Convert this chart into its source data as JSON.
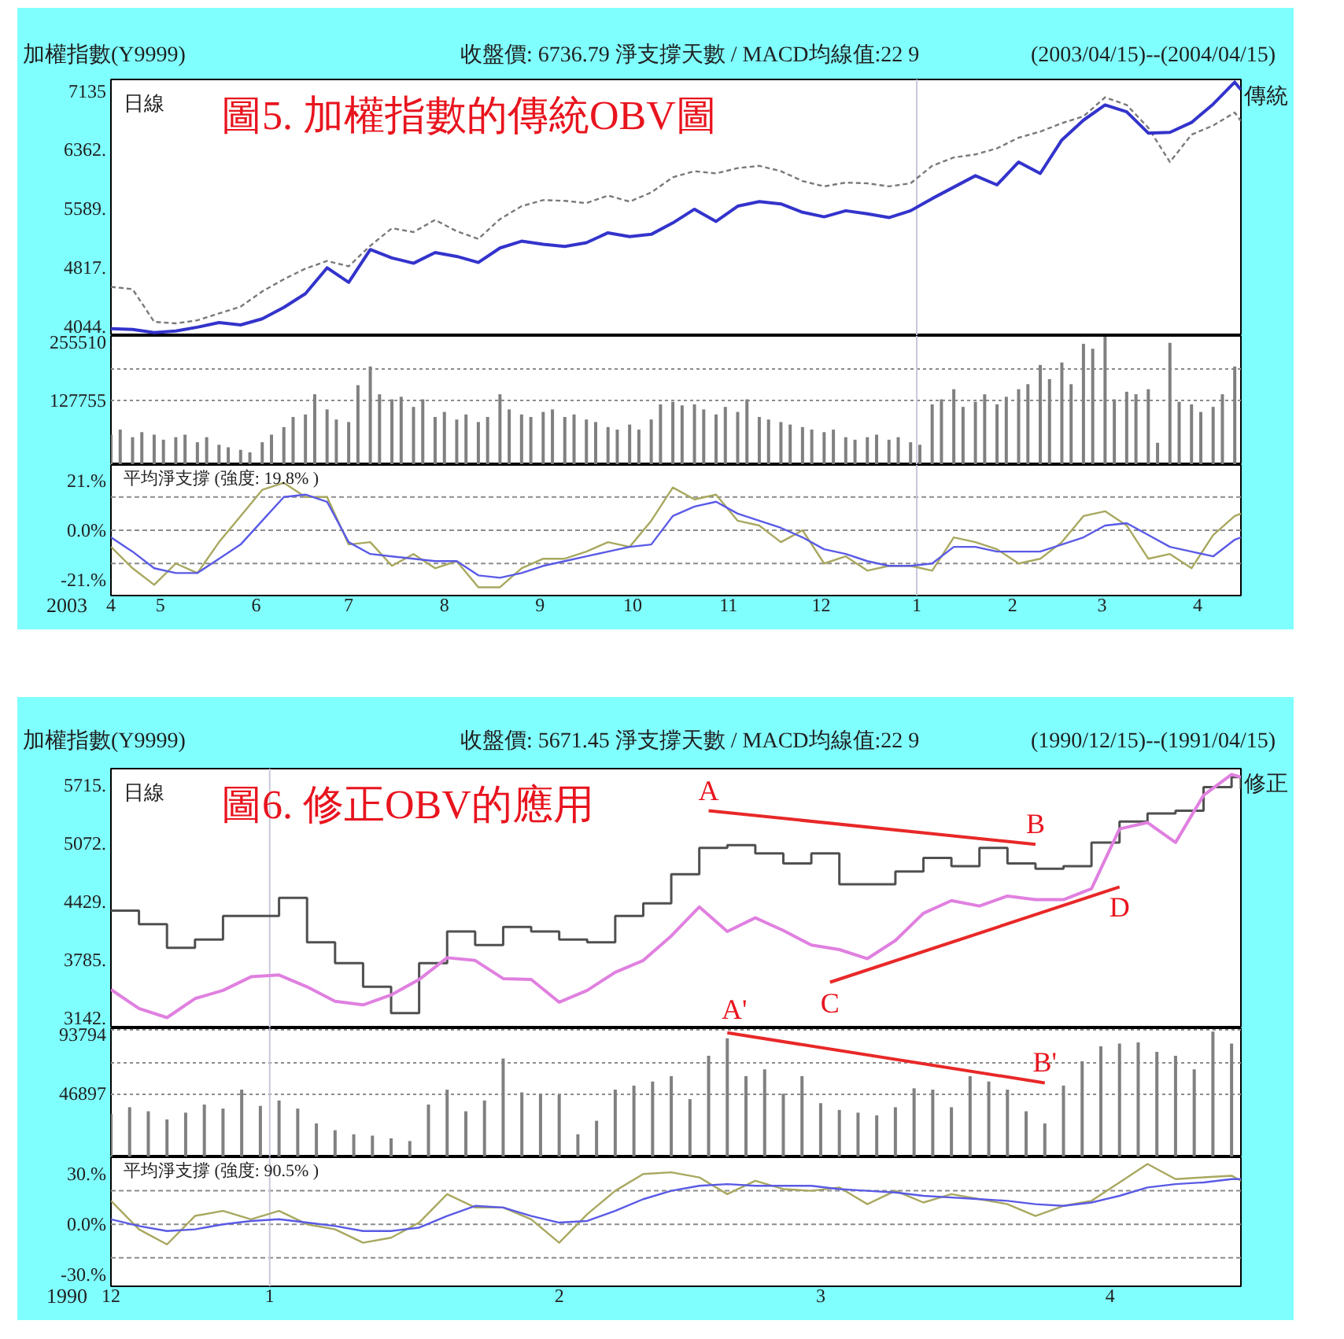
{
  "chart_data": [
    {
      "type": "line",
      "title": "加權指數(Y9999)",
      "subtitle": "收盤價: 6736.79 淨支撐天數 / MACD均線值:22 9",
      "annotations": [
        "(2003/04/15)--(2004/04/15)",
        "圖5. 加權指數的傳統OBV圖",
        "日線"
      ],
      "x": [
        "2003-04-15",
        "2003-04-22",
        "2003-04-29",
        "2003-05-06",
        "2003-05-13",
        "2003-05-20",
        "2003-05-27",
        "2003-06-03",
        "2003-06-10",
        "2003-06-17",
        "2003-06-24",
        "2003-07-01",
        "2003-07-08",
        "2003-07-15",
        "2003-07-22",
        "2003-07-29",
        "2003-08-05",
        "2003-08-12",
        "2003-08-19",
        "2003-08-26",
        "2003-09-02",
        "2003-09-09",
        "2003-09-16",
        "2003-09-23",
        "2003-09-30",
        "2003-10-07",
        "2003-10-14",
        "2003-10-21",
        "2003-10-28",
        "2003-11-04",
        "2003-11-11",
        "2003-11-18",
        "2003-11-25",
        "2003-12-02",
        "2003-12-09",
        "2003-12-16",
        "2003-12-23",
        "2003-12-30",
        "2004-01-06",
        "2004-01-13",
        "2004-01-20",
        "2004-01-27",
        "2004-02-03",
        "2004-02-10",
        "2004-02-17",
        "2004-02-24",
        "2004-03-02",
        "2004-03-09",
        "2004-03-16",
        "2004-03-23",
        "2004-03-30",
        "2004-04-06",
        "2004-04-13",
        "2004-04-15"
      ],
      "xlim": [
        "2003-04-15",
        "2004-04-15"
      ],
      "ylim": [
        3915,
        7285
      ],
      "yticks": [
        7135,
        {
          "value": 6362,
          "label": "6362."
        },
        {
          "value": 5589,
          "label": "5589."
        },
        {
          "value": 4817,
          "label": "4817."
        },
        {
          "value": 4044,
          "label": "4044."
        }
      ],
      "tick_labels": "y",
      "ref_lines": [
        {
          "axis": "x",
          "value": "2004-01-01",
          "color": "#c8c8dc"
        }
      ],
      "series": [
        {
          "color": "#7a7a7a",
          "line_style": "dashed",
          "values": [
            4560,
            4530,
            4100,
            4080,
            4120,
            4210,
            4300,
            4500,
            4660,
            4800,
            4900,
            4830,
            5100,
            5330,
            5280,
            5440,
            5290,
            5190,
            5450,
            5620,
            5700,
            5690,
            5660,
            5760,
            5680,
            5800,
            6000,
            6080,
            6050,
            6120,
            6150,
            6080,
            5950,
            5880,
            5930,
            5920,
            5880,
            5920,
            6150,
            6260,
            6300,
            6380,
            6520,
            6600,
            6710,
            6800,
            7050,
            6950,
            6650,
            6200,
            6560,
            6680,
            6850,
            6740
          ]
        },
        {
          "name": "傳統",
          "color": "#3333cc",
          "values": [
            4010,
            4000,
            3960,
            3980,
            4030,
            4090,
            4060,
            4140,
            4290,
            4470,
            4810,
            4620,
            5050,
            4940,
            4870,
            5010,
            4960,
            4880,
            5070,
            5160,
            5120,
            5090,
            5140,
            5270,
            5220,
            5250,
            5400,
            5580,
            5420,
            5620,
            5680,
            5650,
            5540,
            5480,
            5560,
            5520,
            5470,
            5560,
            5720,
            5870,
            6020,
            5900,
            6200,
            6050,
            6490,
            6750,
            6950,
            6860,
            6580,
            6590,
            6720,
            6960,
            7250,
            7150
          ]
        }
      ]
    },
    {
      "type": "bar",
      "x": [
        "2003-04-15",
        "2003-04-18",
        "2003-04-22",
        "2003-04-25",
        "2003-04-29",
        "2003-05-02",
        "2003-05-06",
        "2003-05-09",
        "2003-05-13",
        "2003-05-16",
        "2003-05-20",
        "2003-05-23",
        "2003-05-27",
        "2003-05-30",
        "2003-06-03",
        "2003-06-06",
        "2003-06-10",
        "2003-06-13",
        "2003-06-17",
        "2003-06-20",
        "2003-06-24",
        "2003-06-27",
        "2003-07-01",
        "2003-07-04",
        "2003-07-08",
        "2003-07-11",
        "2003-07-15",
        "2003-07-18",
        "2003-07-22",
        "2003-07-25",
        "2003-07-29",
        "2003-08-01",
        "2003-08-05",
        "2003-08-08",
        "2003-08-12",
        "2003-08-15",
        "2003-08-19",
        "2003-08-22",
        "2003-08-26",
        "2003-08-29",
        "2003-09-02",
        "2003-09-05",
        "2003-09-09",
        "2003-09-12",
        "2003-09-16",
        "2003-09-19",
        "2003-09-23",
        "2003-09-26",
        "2003-09-30",
        "2003-10-03",
        "2003-10-07",
        "2003-10-10",
        "2003-10-14",
        "2003-10-17",
        "2003-10-21",
        "2003-10-24",
        "2003-10-28",
        "2003-10-31",
        "2003-11-04",
        "2003-11-07",
        "2003-11-11",
        "2003-11-14",
        "2003-11-18",
        "2003-11-21",
        "2003-11-25",
        "2003-11-28",
        "2003-12-02",
        "2003-12-05",
        "2003-12-09",
        "2003-12-12",
        "2003-12-16",
        "2003-12-19",
        "2003-12-23",
        "2003-12-26",
        "2003-12-30",
        "2004-01-02",
        "2004-01-06",
        "2004-01-09",
        "2004-01-13",
        "2004-01-16",
        "2004-01-20",
        "2004-01-23",
        "2004-01-27",
        "2004-01-30",
        "2004-02-03",
        "2004-02-06",
        "2004-02-10",
        "2004-02-13",
        "2004-02-17",
        "2004-02-20",
        "2004-02-24",
        "2004-02-27",
        "2004-03-02",
        "2004-03-05",
        "2004-03-09",
        "2004-03-12",
        "2004-03-16",
        "2004-03-19",
        "2004-03-23",
        "2004-03-26",
        "2004-03-30",
        "2004-04-02",
        "2004-04-06",
        "2004-04-09",
        "2004-04-13"
      ],
      "xlim": [
        "2003-04-15",
        "2004-04-15"
      ],
      "ylim": [
        0,
        255510
      ],
      "yticks": [
        255510,
        {
          "value": 191632.5,
          "label": null
        },
        127755
      ],
      "grid": "y",
      "tick_labels": "y",
      "ref_lines": [
        {
          "axis": "x",
          "value": "2004-01-01",
          "color": "#c8c8dc"
        }
      ],
      "series": [
        {
          "color": "#808080",
          "values": [
            60000,
            70000,
            55000,
            65000,
            60000,
            50000,
            55000,
            60000,
            45000,
            55000,
            40000,
            35000,
            30000,
            25000,
            45000,
            60000,
            75000,
            95000,
            100000,
            140000,
            110000,
            90000,
            85000,
            158000,
            195000,
            140000,
            130000,
            135000,
            115000,
            130000,
            95000,
            105000,
            90000,
            100000,
            85000,
            95000,
            140000,
            110000,
            100000,
            95000,
            105000,
            110000,
            95000,
            100000,
            90000,
            85000,
            75000,
            70000,
            80000,
            70000,
            90000,
            120000,
            125000,
            118000,
            120000,
            110000,
            100000,
            115000,
            105000,
            130000,
            95000,
            90000,
            85000,
            80000,
            75000,
            70000,
            65000,
            70000,
            55000,
            50000,
            55000,
            60000,
            50000,
            55000,
            45000,
            40000,
            120000,
            130000,
            150000,
            115000,
            125000,
            140000,
            120000,
            135000,
            150000,
            160000,
            198000,
            170000,
            203000,
            160000,
            240000,
            230000,
            254000,
            130000,
            145000,
            140000,
            150000,
            44000,
            242000,
            125000,
            120000,
            105000,
            115000,
            140000,
            195000
          ]
        }
      ]
    },
    {
      "type": "line",
      "title": "平均淨支撐 (強度: 19.8% )",
      "x": [
        "2003-04-15",
        "2003-04-22",
        "2003-04-29",
        "2003-05-06",
        "2003-05-13",
        "2003-05-20",
        "2003-05-27",
        "2003-06-03",
        "2003-06-10",
        "2003-06-17",
        "2003-06-24",
        "2003-07-01",
        "2003-07-08",
        "2003-07-15",
        "2003-07-22",
        "2003-07-29",
        "2003-08-05",
        "2003-08-12",
        "2003-08-19",
        "2003-08-26",
        "2003-09-02",
        "2003-09-09",
        "2003-09-16",
        "2003-09-23",
        "2003-09-30",
        "2003-10-07",
        "2003-10-14",
        "2003-10-21",
        "2003-10-28",
        "2003-11-04",
        "2003-11-11",
        "2003-11-18",
        "2003-11-25",
        "2003-12-02",
        "2003-12-09",
        "2003-12-16",
        "2003-12-23",
        "2003-12-30",
        "2004-01-06",
        "2004-01-13",
        "2004-01-20",
        "2004-01-27",
        "2004-02-03",
        "2004-02-10",
        "2004-02-17",
        "2004-02-24",
        "2004-03-02",
        "2004-03-09",
        "2004-03-16",
        "2004-03-23",
        "2004-03-30",
        "2004-04-06",
        "2004-04-13",
        "2004-04-15"
      ],
      "xlim": [
        "2003-04-15",
        "2004-04-15"
      ],
      "ylim": [
        -27.5,
        27.5
      ],
      "yticks": [
        {
          "value": 21,
          "label": "21.%"
        },
        {
          "value": 0,
          "label": "0.0%"
        },
        {
          "value": -21,
          "label": "-21.%"
        }
      ],
      "xticks": [
        {
          "value": "2003-04-15",
          "label": "4"
        },
        {
          "value": "2003-05-01",
          "label": "5"
        },
        {
          "value": "2003-06-01",
          "label": "6"
        },
        {
          "value": "2003-07-01",
          "label": "7"
        },
        {
          "value": "2003-08-01",
          "label": "8"
        },
        {
          "value": "2003-09-01",
          "label": "9"
        },
        {
          "value": "2003-10-01",
          "label": "10"
        },
        {
          "value": "2003-11-01",
          "label": "11"
        },
        {
          "value": "2003-12-01",
          "label": "12"
        },
        {
          "value": "2004-01-01",
          "label": "1"
        },
        {
          "value": "2004-02-01",
          "label": "2"
        },
        {
          "value": "2004-03-01",
          "label": "3"
        },
        {
          "value": "2004-04-01",
          "label": "4"
        }
      ],
      "xlabel": "2003",
      "ref_lines": [
        {
          "axis": "y",
          "value": 14,
          "line_style": "dashed",
          "color": "#8c8c8c"
        },
        {
          "axis": "y",
          "value": 0,
          "line_style": "dashed",
          "color": "#8c8c8c"
        },
        {
          "axis": "y",
          "value": -14,
          "line_style": "dashed",
          "color": "#8c8c8c"
        },
        {
          "axis": "x",
          "value": "2004-01-01",
          "color": "#c8c8dc"
        }
      ],
      "series": [
        {
          "color": "#a8a860",
          "values": [
            -7,
            -16,
            -23,
            -14,
            -18,
            -5,
            6,
            17,
            20,
            14,
            14,
            -6,
            -5,
            -15,
            -10,
            -16,
            -13,
            -24,
            -24,
            -16,
            -12,
            -12,
            -9,
            -5,
            -7,
            4,
            18,
            13,
            15,
            4,
            2,
            -5,
            0,
            -14,
            -11,
            -17,
            -15,
            -15,
            -17,
            -3,
            -5,
            -8,
            -14,
            -12,
            -5,
            6,
            8,
            2,
            -12,
            -10,
            -16,
            -2,
            6,
            7
          ]
        },
        {
          "color": "#5a5ae6",
          "values": [
            -3,
            -9,
            -16,
            -18,
            -18,
            -12,
            -6,
            4,
            14,
            15,
            12,
            -5,
            -10,
            -11,
            -12,
            -13,
            -13,
            -19,
            -20,
            -18,
            -15,
            -13,
            -11,
            -9,
            -7,
            -6,
            6,
            10,
            12,
            7,
            4,
            1,
            -3,
            -8,
            -10,
            -13,
            -15,
            -15,
            -14,
            -7,
            -7,
            -9,
            -9,
            -9,
            -6,
            -3,
            2,
            3,
            -2,
            -7,
            -9,
            -11,
            -4,
            -3
          ]
        }
      ]
    },
    {
      "type": "line",
      "title": "加權指數(Y9999)",
      "subtitle": "收盤價: 5671.45 淨支撐天數 / MACD均線值:22 9",
      "annotations": [
        "(1990/12/15)--(1991/04/15)",
        "圖6. 修正OBV的應用",
        "日線",
        "A'",
        {
          "text": "A",
          "x": "1991-02-17",
          "y": 5430
        },
        {
          "text": "B",
          "x": "1991-03-24",
          "y": 5060
        },
        {
          "text": "C",
          "x": "1991-03-02",
          "y": 3540
        },
        {
          "text": "D",
          "x": "1991-04-02",
          "y": 4590
        }
      ],
      "x": [
        "1990-12-15",
        "1990-12-18",
        "1990-12-21",
        "1990-12-24",
        "1990-12-27",
        "1990-12-30",
        "1991-01-02",
        "1991-01-05",
        "1991-01-08",
        "1991-01-11",
        "1991-01-14",
        "1991-01-17",
        "1991-01-20",
        "1991-01-23",
        "1991-01-26",
        "1991-01-29",
        "1991-02-01",
        "1991-02-04",
        "1991-02-07",
        "1991-02-10",
        "1991-02-13",
        "1991-02-16",
        "1991-02-19",
        "1991-02-22",
        "1991-02-25",
        "1991-02-28",
        "1991-03-03",
        "1991-03-06",
        "1991-03-09",
        "1991-03-12",
        "1991-03-15",
        "1991-03-18",
        "1991-03-21",
        "1991-03-24",
        "1991-03-27",
        "1991-03-30",
        "1991-04-02",
        "1991-04-05",
        "1991-04-08",
        "1991-04-11",
        "1991-04-14",
        "1991-04-15"
      ],
      "xlim": [
        "1990-12-15",
        "1991-04-15"
      ],
      "ylim": [
        3033,
        5894
      ],
      "yticks": [
        {
          "value": 5715,
          "label": "5715."
        },
        {
          "value": 5072,
          "label": "5072."
        },
        {
          "value": 4429,
          "label": "4429."
        },
        {
          "value": 3785,
          "label": "3785."
        },
        {
          "value": 3142,
          "label": "3142."
        }
      ],
      "tick_labels": "y",
      "ref_lines": [
        {
          "axis": "x",
          "value": "1991-01-01",
          "color": "#c8c8dc"
        }
      ],
      "series": [
        {
          "type": "step",
          "color": "#505050",
          "values": [
            4330,
            4180,
            3920,
            4010,
            4270,
            4270,
            4470,
            3980,
            3750,
            3490,
            3200,
            3750,
            4100,
            3950,
            4150,
            4100,
            4010,
            3980,
            4270,
            4410,
            4730,
            5020,
            5050,
            4960,
            4850,
            4960,
            4620,
            4620,
            4760,
            4910,
            4820,
            5020,
            4850,
            4790,
            4820,
            5080,
            5310,
            5400,
            5430,
            5690,
            5800,
            5670
          ]
        },
        {
          "name": "修正",
          "color": "#e080e0",
          "values": [
            3460,
            3250,
            3150,
            3360,
            3450,
            3600,
            3620,
            3490,
            3330,
            3290,
            3400,
            3570,
            3810,
            3780,
            3580,
            3570,
            3320,
            3450,
            3650,
            3780,
            4050,
            4370,
            4100,
            4250,
            4110,
            3950,
            3900,
            3800,
            4000,
            4300,
            4440,
            4380,
            4490,
            4450,
            4450,
            4570,
            5230,
            5300,
            5080,
            5600,
            5830,
            5800
          ]
        },
        {
          "color": "#e82828",
          "x": [
            "1991-02-17",
            "1991-03-24"
          ],
          "values": [
            5430,
            5060
          ]
        },
        {
          "color": "#e82828",
          "x": [
            "1991-03-02",
            "1991-04-02"
          ],
          "values": [
            3540,
            4590
          ]
        }
      ]
    },
    {
      "type": "bar",
      "annotations": [
        {
          "text": "B'",
          "x": "1991-03-25",
          "y": 55000
        }
      ],
      "x": [
        "1990-12-15",
        "1990-12-17",
        "1990-12-19",
        "1990-12-21",
        "1990-12-23",
        "1990-12-25",
        "1990-12-27",
        "1990-12-29",
        "1990-12-31",
        "1991-01-02",
        "1991-01-04",
        "1991-01-06",
        "1991-01-08",
        "1991-01-10",
        "1991-01-12",
        "1991-01-14",
        "1991-01-16",
        "1991-01-18",
        "1991-01-20",
        "1991-01-22",
        "1991-01-24",
        "1991-01-26",
        "1991-01-28",
        "1991-01-30",
        "1991-02-01",
        "1991-02-03",
        "1991-02-05",
        "1991-02-07",
        "1991-02-09",
        "1991-02-11",
        "1991-02-13",
        "1991-02-15",
        "1991-02-17",
        "1991-02-19",
        "1991-02-21",
        "1991-02-23",
        "1991-02-25",
        "1991-02-27",
        "1991-03-01",
        "1991-03-03",
        "1991-03-05",
        "1991-03-07",
        "1991-03-09",
        "1991-03-11",
        "1991-03-13",
        "1991-03-15",
        "1991-03-17",
        "1991-03-19",
        "1991-03-21",
        "1991-03-23",
        "1991-03-25",
        "1991-03-27",
        "1991-03-29",
        "1991-03-31",
        "1991-04-02",
        "1991-04-04",
        "1991-04-06",
        "1991-04-08",
        "1991-04-10",
        "1991-04-12",
        "1991-04-14"
      ],
      "xlim": [
        "1990-12-15",
        "1991-04-15"
      ],
      "ylim": [
        0,
        95400
      ],
      "yticks": [
        93794,
        {
          "value": 70345.5,
          "label": null
        },
        46897
      ],
      "grid": "y",
      "tick_labels": "y",
      "ref_lines": [
        {
          "axis": "x",
          "value": "1991-01-01",
          "color": "#c8c8dc"
        }
      ],
      "series": [
        {
          "color": "#808080",
          "values": [
            32000,
            37000,
            34000,
            28000,
            33000,
            39000,
            36000,
            50000,
            38000,
            42000,
            36000,
            25000,
            20000,
            17000,
            16000,
            14000,
            12000,
            39000,
            50000,
            34000,
            42000,
            73000,
            48000,
            47000,
            46000,
            17000,
            27000,
            50000,
            53000,
            56000,
            60000,
            43000,
            75000,
            88000,
            60000,
            65000,
            47000,
            60000,
            40000,
            35000,
            33000,
            31000,
            37000,
            51000,
            50000,
            37000,
            60000,
            56000,
            50000,
            34000,
            25000,
            53000,
            71000,
            82000,
            84000,
            85000,
            78000,
            75000,
            65000,
            93000,
            84000
          ]
        },
        {
          "type": "line",
          "color": "#e82828",
          "x": [
            "1991-02-19",
            "1991-03-25"
          ],
          "values": [
            92000,
            55000
          ]
        }
      ]
    },
    {
      "type": "line",
      "title": "平均淨支撐 (強度: 90.5% )",
      "x": [
        "1990-12-15",
        "1990-12-18",
        "1990-12-21",
        "1990-12-24",
        "1990-12-27",
        "1990-12-30",
        "1991-01-02",
        "1991-01-05",
        "1991-01-08",
        "1991-01-11",
        "1991-01-14",
        "1991-01-17",
        "1991-01-20",
        "1991-01-23",
        "1991-01-26",
        "1991-01-29",
        "1991-02-01",
        "1991-02-04",
        "1991-02-07",
        "1991-02-10",
        "1991-02-13",
        "1991-02-16",
        "1991-02-19",
        "1991-02-22",
        "1991-02-25",
        "1991-02-28",
        "1991-03-03",
        "1991-03-06",
        "1991-03-09",
        "1991-03-12",
        "1991-03-15",
        "1991-03-18",
        "1991-03-21",
        "1991-03-24",
        "1991-03-27",
        "1991-03-30",
        "1991-04-02",
        "1991-04-05",
        "1991-04-08",
        "1991-04-11",
        "1991-04-14",
        "1991-04-15"
      ],
      "xlim": [
        "1990-12-15",
        "1991-04-15"
      ],
      "ylim": [
        -37,
        40
      ],
      "yticks": [
        {
          "value": 30,
          "label": "30.%"
        },
        {
          "value": 0,
          "label": "0.0%"
        },
        {
          "value": -30,
          "label": "-30.%"
        }
      ],
      "xticks": [
        {
          "value": "1990-12-15",
          "label": "12"
        },
        {
          "value": "1991-01-01",
          "label": "1"
        },
        {
          "value": "1991-02-01",
          "label": "2"
        },
        {
          "value": "1991-03-01",
          "label": "3"
        },
        {
          "value": "1991-04-01",
          "label": "4"
        }
      ],
      "xlabel": "1990",
      "ref_lines": [
        {
          "axis": "y",
          "value": 20,
          "line_style": "dashed",
          "color": "#8c8c8c"
        },
        {
          "axis": "y",
          "value": 0,
          "line_style": "dashed",
          "color": "#8c8c8c"
        },
        {
          "axis": "y",
          "value": -20,
          "line_style": "dashed",
          "color": "#8c8c8c"
        },
        {
          "axis": "x",
          "value": "1991-01-01",
          "color": "#c8c8dc"
        }
      ],
      "series": [
        {
          "color": "#a8a860",
          "values": [
            14,
            -3,
            -12,
            5,
            8,
            3,
            8,
            0,
            -3,
            -11,
            -8,
            1,
            18,
            10,
            10,
            3,
            -11,
            6,
            20,
            30,
            31,
            28,
            18,
            26,
            21,
            20,
            22,
            12,
            20,
            13,
            18,
            15,
            12,
            5,
            11,
            14,
            25,
            36,
            27,
            28,
            29,
            26
          ]
        },
        {
          "color": "#5a5ae6",
          "values": [
            3,
            -1,
            -4,
            -3,
            0,
            2,
            3,
            1,
            -1,
            -4,
            -4,
            -2,
            5,
            11,
            10,
            5,
            1,
            2,
            8,
            15,
            20,
            23,
            24,
            23,
            23,
            23,
            21,
            20,
            19,
            17,
            16,
            15,
            14,
            12,
            11,
            13,
            17,
            22,
            24,
            25,
            27,
            27
          ]
        }
      ]
    }
  ]
}
